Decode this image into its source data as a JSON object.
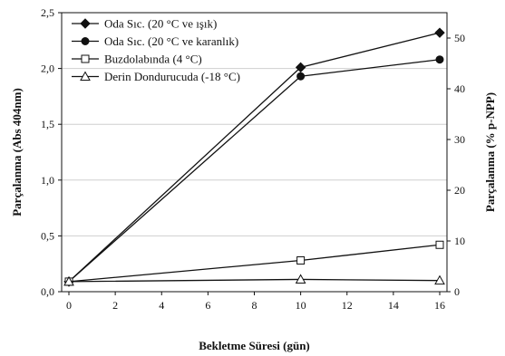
{
  "chart_data": {
    "type": "line",
    "title": "",
    "xlabel": "Bekletme Süresi (gün)",
    "ylabel": "Parçalanma (Abs 404nm)",
    "y2label": "Parçalanma (% p-NPP)",
    "xlim": [
      0,
      16
    ],
    "ylim": [
      0,
      2.5
    ],
    "y2lim": [
      0,
      55
    ],
    "x_ticks": [
      "0",
      "2",
      "4",
      "6",
      "8",
      "10",
      "12",
      "14",
      "16"
    ],
    "y_ticks": [
      "0,0",
      "0,5",
      "1,0",
      "1,5",
      "2,0",
      "2,5"
    ],
    "y2_ticks": [
      "0",
      "10",
      "20",
      "30",
      "40",
      "50"
    ],
    "grid": "horizontal",
    "legend_position": "top-left",
    "x": [
      0,
      10,
      16
    ],
    "series": [
      {
        "name": "Oda Sıc. (20 °C ve ışık)",
        "marker": "diamond-filled",
        "values": [
          0.09,
          2.01,
          2.32
        ]
      },
      {
        "name": "Oda Sıc. (20 °C ve karanlık)",
        "marker": "circle-filled",
        "values": [
          0.09,
          1.93,
          2.08
        ]
      },
      {
        "name": "Buzdolabında (4 °C)",
        "marker": "square-open",
        "values": [
          0.09,
          0.28,
          0.42
        ]
      },
      {
        "name": "Derin Dondurucuda (-18 °C)",
        "marker": "triangle-open",
        "values": [
          0.09,
          0.11,
          0.1
        ]
      }
    ]
  }
}
